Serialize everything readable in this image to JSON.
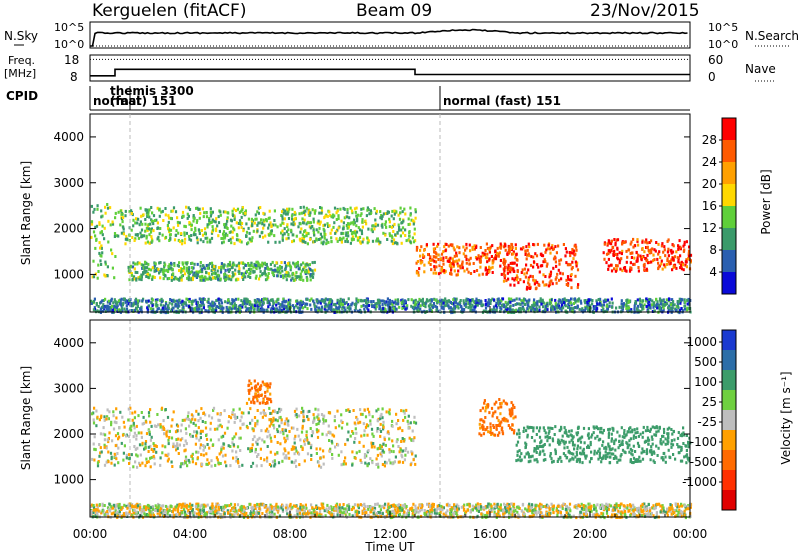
{
  "header": {
    "title": "Kerguelen (fitACF)",
    "beam": "Beam 09",
    "date": "23/Nov/2015"
  },
  "noise_panel": {
    "label": "N.Sky",
    "tick_top": "10^5",
    "tick_bottom": "10^0",
    "right_label": "N.Search"
  },
  "freq_panel": {
    "label_line1": "Freq.",
    "label_line2": "[MHz]",
    "left_ticks": [
      "18",
      "8"
    ],
    "right_ticks": [
      "60",
      "0"
    ],
    "right_label": "Nave"
  },
  "cpid_panel": {
    "label": "CPID",
    "segments": [
      {
        "start_hour": 0.0,
        "text": "normal"
      },
      {
        "start_hour": 1.6,
        "text": "themis 3300",
        "text2": "(fast) 151"
      },
      {
        "start_hour": 14.0,
        "text": "normal (fast) 151"
      }
    ]
  },
  "power_panel": {
    "ylabel": "Slant Range [km]",
    "colorbar_label": "Power [dB]",
    "colorbar_ticks": [
      "28",
      "24",
      "20",
      "16",
      "12",
      "8",
      "4"
    ],
    "colorbar_colors": [
      "#ff0000",
      "#ff5a00",
      "#ffa000",
      "#ffd800",
      "#5fcf3a",
      "#3a9a6a",
      "#2a5fb0",
      "#0a0ad8"
    ]
  },
  "velocity_panel": {
    "ylabel": "Slant Range [km]",
    "colorbar_label": "Velocity [m s⁻¹]",
    "colorbar_ticks": [
      "1000",
      "500",
      "100",
      "25",
      "-25",
      "-100",
      "-500",
      "-1000"
    ],
    "colorbar_colors": [
      "#1a3ad0",
      "#2c6ea8",
      "#3c9c6a",
      "#6fd040",
      "#bebebe",
      "#ffa000",
      "#ff6a00",
      "#ff3000",
      "#e00000"
    ]
  },
  "xaxis": {
    "label": "Time UT",
    "tick_labels": [
      "00:00",
      "04:00",
      "08:00",
      "12:00",
      "16:00",
      "20:00",
      "00:00"
    ]
  },
  "chart_data": {
    "type": "heatmap",
    "title": "Kerguelen (fitACF)",
    "x_range_hours": [
      0,
      24
    ],
    "y_range_km": [
      180,
      4500
    ],
    "y_tick_labels": [
      "1000",
      "2000",
      "3000",
      "4000"
    ],
    "y_ticks_km": [
      1000,
      2000,
      3000,
      4000
    ],
    "frequency_MHz": [
      {
        "from_hour": 0.0,
        "to_hour": 1.0,
        "value": 10
      },
      {
        "from_hour": 1.0,
        "to_hour": 13.0,
        "value": 12.5
      },
      {
        "from_hour": 13.0,
        "to_hour": 24.0,
        "value": 10.5
      }
    ],
    "nave_level": 50,
    "power_echo_bands": [
      {
        "from_hour": 0.0,
        "to_hour": 1.0,
        "range_km": [
          900,
          2600
        ],
        "level_dB": 12
      },
      {
        "from_hour": 1.5,
        "to_hour": 9.0,
        "range_km": [
          900,
          1300
        ],
        "level_dB": 10
      },
      {
        "from_hour": 1.0,
        "to_hour": 13.0,
        "range_km": [
          1700,
          2500
        ],
        "level_dB": 11
      },
      {
        "from_hour": 13.0,
        "to_hour": 17.0,
        "range_km": [
          1000,
          1700
        ],
        "level_dB": 24
      },
      {
        "from_hour": 16.5,
        "to_hour": 19.5,
        "range_km": [
          700,
          1700
        ],
        "level_dB": 26
      },
      {
        "from_hour": 20.5,
        "to_hour": 24.0,
        "range_km": [
          1100,
          1800
        ],
        "level_dB": 26
      },
      {
        "from_hour": 0.0,
        "to_hour": 24.0,
        "range_km": [
          200,
          500
        ],
        "level_dB": 6
      }
    ],
    "velocity_echo_bands": [
      {
        "from_hour": 0.0,
        "to_hour": 13.0,
        "range_km": [
          1300,
          2600
        ],
        "velocity_ms": 0
      },
      {
        "from_hour": 6.2,
        "to_hour": 7.2,
        "range_km": [
          2700,
          3200
        ],
        "velocity_ms": -150
      },
      {
        "from_hour": 15.5,
        "to_hour": 17.0,
        "range_km": [
          2000,
          2800
        ],
        "velocity_ms": -150
      },
      {
        "from_hour": 17.0,
        "to_hour": 24.0,
        "range_km": [
          1400,
          2200
        ],
        "velocity_ms": 200
      },
      {
        "from_hour": 0.0,
        "to_hour": 24.0,
        "range_km": [
          200,
          500
        ],
        "velocity_ms": 0
      }
    ]
  }
}
